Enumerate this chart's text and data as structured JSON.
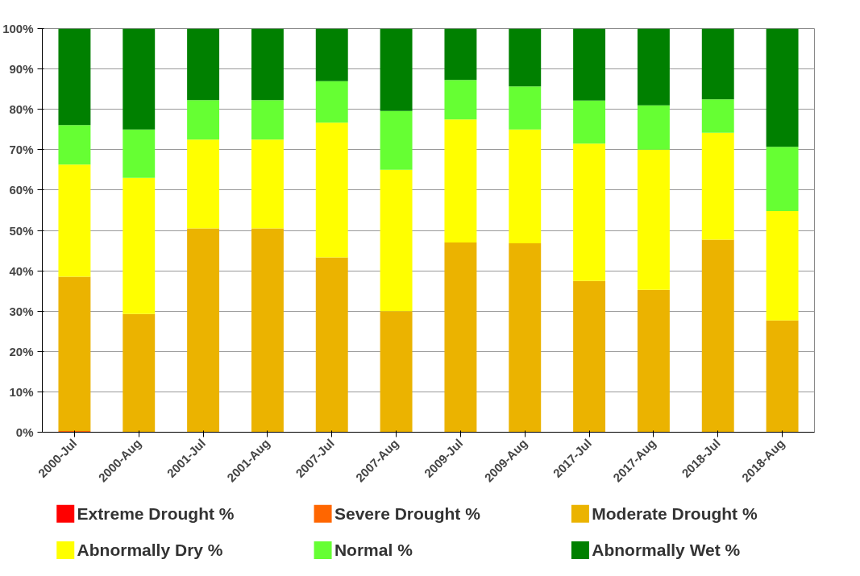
{
  "chart_data": {
    "type": "bar",
    "stacked": true,
    "categories": [
      "2000-Jul",
      "2000-Aug",
      "2001-Jul",
      "2001-Aug",
      "2007-Jul",
      "2007-Aug",
      "2009-Jul",
      "2009-Aug",
      "2017-Jul",
      "2017-Aug",
      "2018-Jul",
      "2018-Aug"
    ],
    "series": [
      {
        "name": "Extreme Drought %",
        "color": "#ff0000",
        "values": [
          0,
          0,
          0,
          0,
          0,
          0,
          0,
          0,
          0,
          0,
          0,
          0
        ]
      },
      {
        "name": "Severe Drought %",
        "color": "#ff6600",
        "values": [
          0.3,
          0,
          0,
          0,
          0,
          0,
          0,
          0,
          0,
          0,
          0,
          0
        ]
      },
      {
        "name": "Moderate Drought %",
        "color": "#ebb300",
        "values": [
          38.2,
          29.3,
          50.5,
          50.5,
          43.3,
          30,
          47,
          46.8,
          37.5,
          35.3,
          47.7,
          27.7
        ]
      },
      {
        "name": "Abnormally Dry %",
        "color": "#ffff00",
        "values": [
          27.8,
          33.7,
          22,
          22,
          33.4,
          35,
          30.5,
          28.2,
          34,
          34.7,
          26.5,
          27.1
        ]
      },
      {
        "name": "Normal %",
        "color": "#66ff33",
        "values": [
          9.8,
          12,
          9.8,
          9.8,
          10.3,
          14.6,
          9.8,
          10.7,
          10.7,
          11,
          8.3,
          15.9
        ]
      },
      {
        "name": "Abnormally Wet %",
        "color": "#008000",
        "values": [
          23.9,
          25,
          17.7,
          17.7,
          13,
          20.4,
          12.7,
          14.3,
          17.8,
          19,
          17.5,
          29.3
        ]
      }
    ],
    "ylim": [
      0,
      100
    ],
    "yticks": [
      {
        "value": 0,
        "label": "0%"
      },
      {
        "value": 10,
        "label": "10%"
      },
      {
        "value": 20,
        "label": "20%"
      },
      {
        "value": 30,
        "label": "30%"
      },
      {
        "value": 40,
        "label": "40%"
      },
      {
        "value": 50,
        "label": "50%"
      },
      {
        "value": 60,
        "label": "60%"
      },
      {
        "value": 70,
        "label": "70%"
      },
      {
        "value": 80,
        "label": "80%"
      },
      {
        "value": 90,
        "label": "90%"
      },
      {
        "value": 100,
        "label": "100%"
      }
    ],
    "grid": "y",
    "legend": "bottom"
  }
}
